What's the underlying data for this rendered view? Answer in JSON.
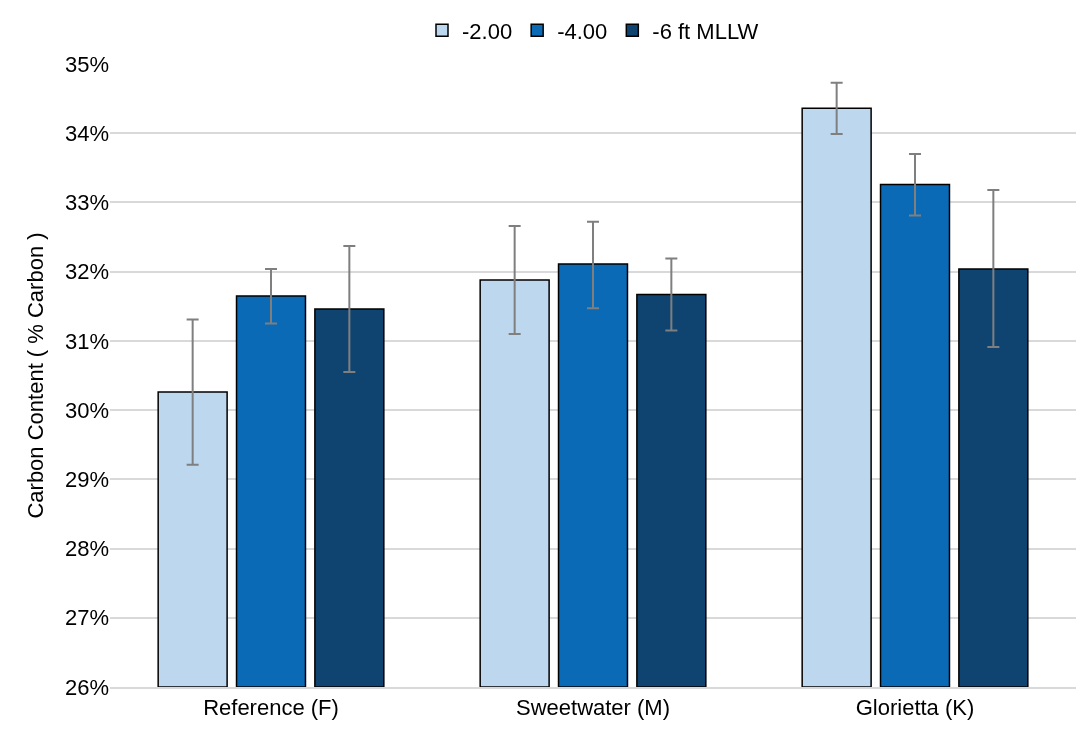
{
  "chart_data": {
    "type": "bar",
    "ylabel": "Carbon Content ( % Carbon )",
    "categories": [
      "Reference (F)",
      "Sweetwater (M)",
      "Glorietta (K)"
    ],
    "series": [
      {
        "name": "-2.00",
        "color": "#bdd7ee",
        "values": [
          30.26,
          31.88,
          34.36
        ],
        "errors": [
          [
            29.21,
            31.31
          ],
          [
            31.1,
            32.66
          ],
          [
            33.99,
            34.73
          ]
        ]
      },
      {
        "name": "-4.00",
        "color": "#0a6ab5",
        "values": [
          31.65,
          32.11,
          33.26
        ],
        "errors": [
          [
            31.25,
            32.04
          ],
          [
            31.47,
            32.72
          ],
          [
            32.81,
            33.7
          ]
        ]
      },
      {
        "name": "-6 ft MLLW",
        "color": "#0f4470",
        "values": [
          31.46,
          31.67,
          32.04
        ],
        "errors": [
          [
            30.55,
            32.37
          ],
          [
            31.15,
            32.19
          ],
          [
            30.91,
            33.18
          ]
        ]
      }
    ],
    "ylim": [
      26,
      35
    ],
    "yticks": [
      {
        "value": 26,
        "label": "26%"
      },
      {
        "value": 27,
        "label": "27%"
      },
      {
        "value": 28,
        "label": "28%"
      },
      {
        "value": 29,
        "label": "29%"
      },
      {
        "value": 30,
        "label": "30%"
      },
      {
        "value": 31,
        "label": "31%"
      },
      {
        "value": 32,
        "label": "32%"
      },
      {
        "value": 33,
        "label": "33%"
      },
      {
        "value": 34,
        "label": "34%"
      },
      {
        "value": 35,
        "label": "35%"
      }
    ],
    "grid": "y",
    "legend": "top"
  }
}
